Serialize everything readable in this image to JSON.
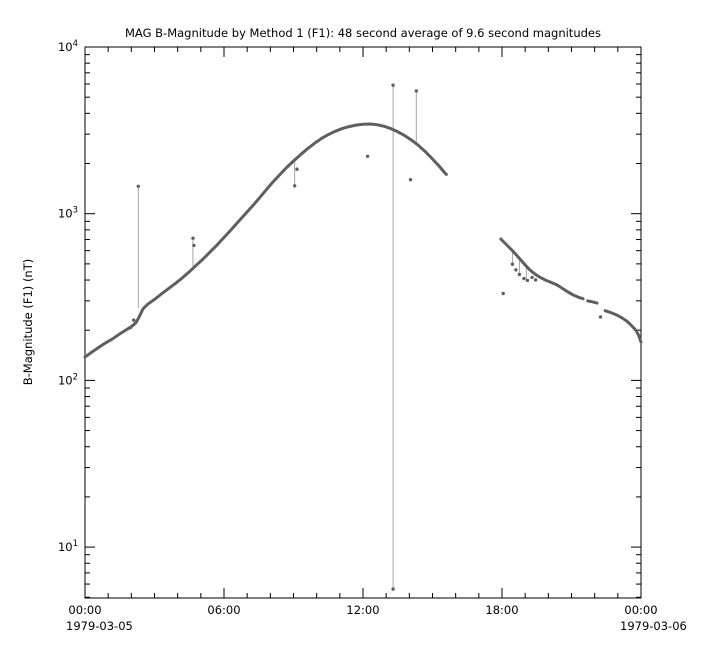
{
  "chart_data": {
    "type": "line",
    "title": "MAG  B-Magnitude by Method 1 (F1): 48 second average of 9.6 second magnitudes",
    "ylabel": "B-Magnitude (F1) (nT)",
    "xlabel": "",
    "x_date_start": "1979-03-05",
    "x_date_end": "1979-03-06",
    "xlim": [
      0,
      24
    ],
    "ylim": [
      4.95,
      10000
    ],
    "y_scale": "log",
    "grid": false,
    "legend": "none",
    "x_ticks": [
      {
        "h": 0,
        "label": "00:00"
      },
      {
        "h": 6,
        "label": "06:00"
      },
      {
        "h": 12,
        "label": "12:00"
      },
      {
        "h": 18,
        "label": "18:00"
      },
      {
        "h": 24,
        "label": "00:00"
      }
    ],
    "y_tick_exponents": [
      4,
      3,
      2,
      1
    ],
    "colors": {
      "line": "#5f5f5f",
      "spike": "#9b9b9b",
      "axis": "#000000",
      "background": "#ffffff"
    },
    "segments": [
      [
        [
          0.0,
          138
        ],
        [
          0.3,
          148
        ],
        [
          0.6,
          158
        ],
        [
          0.9,
          168
        ],
        [
          1.2,
          178
        ],
        [
          1.5,
          190
        ],
        [
          1.8,
          202
        ],
        [
          2.0,
          210
        ],
        [
          2.2,
          222
        ],
        [
          2.35,
          242
        ],
        [
          2.5,
          268
        ],
        [
          2.7,
          286
        ],
        [
          3.0,
          306
        ],
        [
          3.3,
          330
        ],
        [
          3.6,
          355
        ],
        [
          3.9,
          382
        ],
        [
          4.2,
          412
        ],
        [
          4.5,
          448
        ],
        [
          4.8,
          490
        ],
        [
          5.1,
          535
        ],
        [
          5.4,
          590
        ],
        [
          5.7,
          650
        ],
        [
          6.0,
          720
        ],
        [
          6.3,
          800
        ],
        [
          6.6,
          890
        ],
        [
          6.9,
          990
        ],
        [
          7.2,
          1100
        ],
        [
          7.5,
          1230
        ],
        [
          7.8,
          1380
        ],
        [
          8.1,
          1540
        ],
        [
          8.4,
          1710
        ],
        [
          8.7,
          1890
        ],
        [
          9.0,
          2070
        ],
        [
          9.3,
          2260
        ],
        [
          9.6,
          2450
        ],
        [
          9.9,
          2640
        ],
        [
          10.2,
          2820
        ],
        [
          10.5,
          2980
        ],
        [
          10.8,
          3120
        ],
        [
          11.1,
          3240
        ],
        [
          11.4,
          3330
        ],
        [
          11.7,
          3400
        ],
        [
          12.0,
          3440
        ],
        [
          12.3,
          3450
        ],
        [
          12.6,
          3420
        ],
        [
          12.9,
          3350
        ],
        [
          13.2,
          3240
        ],
        [
          13.5,
          3100
        ],
        [
          13.8,
          2940
        ],
        [
          14.1,
          2760
        ],
        [
          14.4,
          2560
        ],
        [
          14.7,
          2350
        ],
        [
          15.0,
          2130
        ],
        [
          15.3,
          1920
        ],
        [
          15.5,
          1780
        ],
        [
          15.6,
          1720
        ]
      ],
      [
        [
          17.95,
          705
        ],
        [
          18.1,
          672
        ],
        [
          18.25,
          640
        ],
        [
          18.4,
          610
        ],
        [
          18.55,
          580
        ],
        [
          18.7,
          550
        ],
        [
          18.85,
          520
        ],
        [
          19.0,
          492
        ],
        [
          19.15,
          468
        ],
        [
          19.3,
          448
        ],
        [
          19.45,
          432
        ],
        [
          19.6,
          418
        ],
        [
          19.75,
          408
        ],
        [
          19.9,
          398
        ],
        [
          20.1,
          388
        ],
        [
          20.3,
          378
        ],
        [
          20.5,
          365
        ],
        [
          20.7,
          350
        ],
        [
          20.9,
          336
        ],
        [
          21.1,
          324
        ],
        [
          21.3,
          315
        ],
        [
          21.5,
          309
        ]
      ],
      [
        [
          21.7,
          300
        ],
        [
          21.9,
          296
        ],
        [
          22.1,
          291
        ]
      ],
      [
        [
          22.45,
          262
        ],
        [
          22.6,
          258
        ],
        [
          22.8,
          252
        ],
        [
          23.0,
          245
        ],
        [
          23.2,
          236
        ],
        [
          23.4,
          226
        ],
        [
          23.6,
          213
        ],
        [
          23.8,
          198
        ],
        [
          23.9,
          186
        ],
        [
          24.0,
          170
        ]
      ]
    ],
    "outliers": [
      [
        1.95,
        207
      ],
      [
        2.1,
        230
      ],
      [
        2.3,
        1460
      ],
      [
        4.66,
        713
      ],
      [
        4.7,
        645
      ],
      [
        9.05,
        1470
      ],
      [
        9.15,
        1850
      ],
      [
        12.2,
        2210
      ],
      [
        13.3,
        5900
      ],
      [
        13.3,
        5.6
      ],
      [
        14.05,
        1600
      ],
      [
        14.3,
        5450
      ],
      [
        18.05,
        332
      ],
      [
        18.45,
        498
      ],
      [
        18.6,
        460
      ],
      [
        18.75,
        432
      ],
      [
        18.95,
        408
      ],
      [
        19.1,
        398
      ],
      [
        19.3,
        415
      ],
      [
        19.45,
        400
      ],
      [
        22.25,
        240
      ]
    ],
    "spikes": [
      [
        2.3,
        272,
        1460
      ],
      [
        4.66,
        465,
        713
      ],
      [
        9.05,
        2090,
        1470
      ],
      [
        13.3,
        5.6,
        5900
      ],
      [
        14.3,
        2620,
        5450
      ],
      [
        18.45,
        592,
        498
      ],
      [
        18.75,
        540,
        432
      ],
      [
        19.05,
        480,
        408
      ]
    ]
  }
}
